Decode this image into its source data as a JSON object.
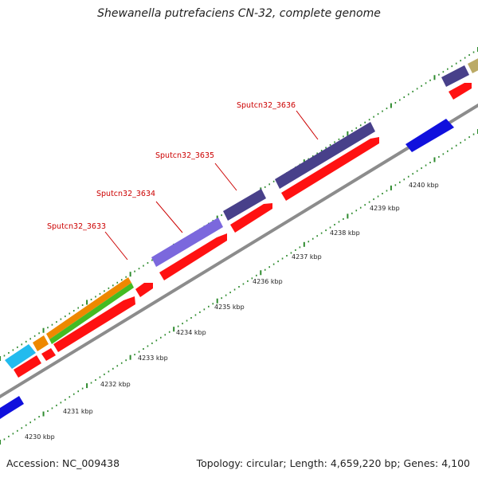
{
  "header": {
    "title": "Shewanella putrefaciens CN-32, complete genome"
  },
  "footer": {
    "accession": "Accession: NC_009438",
    "topology": "Topology: circular; Length: 4,659,220 bp; Genes: 4,100"
  },
  "map": {
    "colors": {
      "backbone": "#8c8c8c",
      "ticks": "#2e8b2e",
      "cds": "#ff1111",
      "gene_label": "#cc0000",
      "feature_darkslate": "#48408a",
      "feature_lightslate": "#7b68dd",
      "feature_blue": "#1010dd",
      "feature_cyan": "#22bbee",
      "feature_orange": "#ee8800",
      "feature_green": "#44bb22",
      "feature_khaki": "#bbaa66"
    },
    "kbp_labels": [
      "4230 kbp",
      "4231 kbp",
      "4232 kbp",
      "4233 kbp",
      "4234 kbp",
      "4235 kbp",
      "4236 kbp",
      "4237 kbp",
      "4238 kbp",
      "4239 kbp",
      "4240 kbp"
    ],
    "gene_labels": [
      "Sputcn32_3633",
      "Sputcn32_3634",
      "Sputcn32_3635",
      "Sputcn32_3636"
    ]
  }
}
